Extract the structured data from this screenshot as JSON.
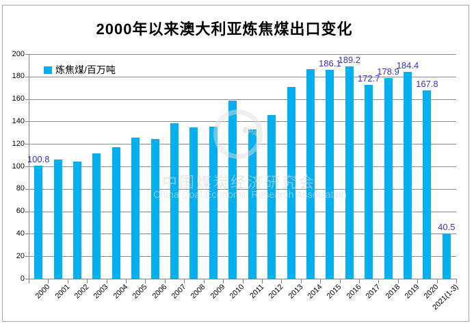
{
  "title": "2000年以来澳大利亚炼焦煤出口变化",
  "legend": {
    "label": "炼焦煤/百万吨"
  },
  "watermark": {
    "line_cn": "中国煤炭经济研究会",
    "line_en": "China Coal Economic Research Association",
    "emblem": "EPA"
  },
  "chart_data": {
    "type": "bar",
    "title": "2000年以来澳大利亚炼焦煤出口变化",
    "legend": [
      "炼焦煤/百万吨"
    ],
    "xlabel": "",
    "ylabel": "",
    "ylim": [
      0,
      200
    ],
    "ytick_step": 20,
    "grid": true,
    "legend_position": "top-left-inside",
    "bar_color": "#00b0f0",
    "value_label_color": "#3333cc",
    "axis_color": "#7f7f7f",
    "categories": [
      "2000",
      "2001",
      "2002",
      "2003",
      "2004",
      "2005",
      "2006",
      "2007",
      "2008",
      "2009",
      "2010",
      "2011",
      "2012",
      "2013",
      "2014",
      "2015",
      "2016",
      "2017",
      "2018",
      "2019",
      "2020",
      "2021(1-3)"
    ],
    "values": [
      100.8,
      106,
      104,
      111.5,
      117,
      125.5,
      124.5,
      138.5,
      134.5,
      135.5,
      158.5,
      133,
      145.5,
      170.5,
      186.5,
      186.1,
      189.2,
      172.7,
      178.9,
      184.4,
      167.8,
      40.5
    ],
    "value_labels": [
      "100.8",
      null,
      null,
      null,
      null,
      null,
      null,
      null,
      null,
      null,
      null,
      null,
      null,
      null,
      null,
      "186.1",
      "189.2",
      "172.7",
      "178.9",
      "184.4",
      "167.8",
      "40.5"
    ]
  }
}
